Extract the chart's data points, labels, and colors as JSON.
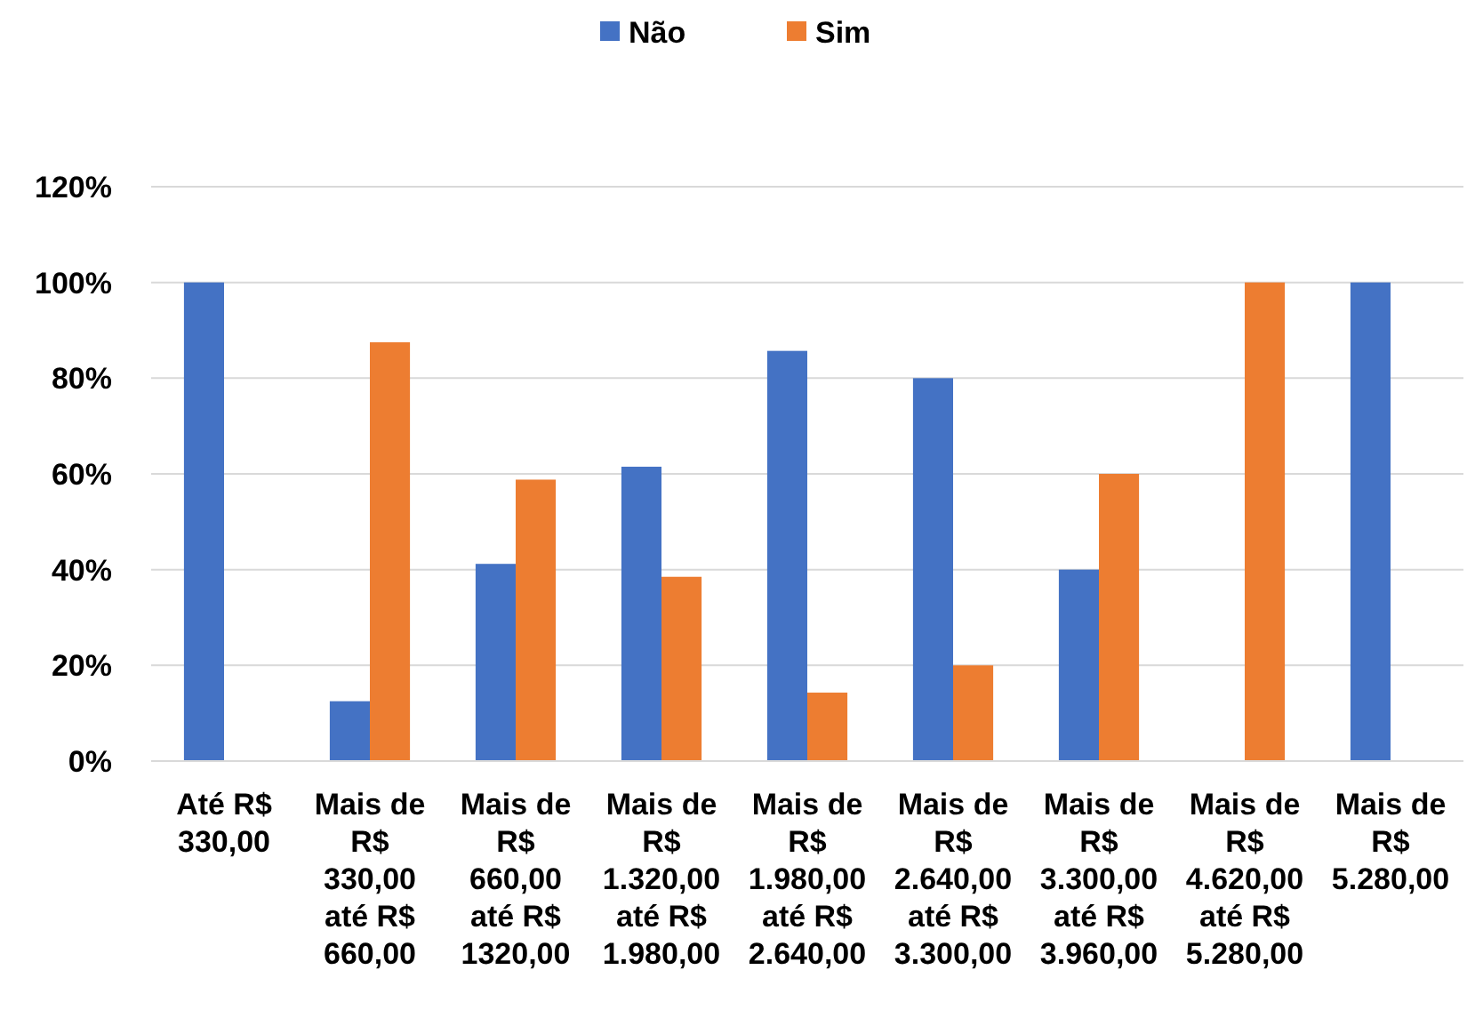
{
  "chart_data": {
    "type": "bar",
    "categories": [
      "Até R$ 330,00",
      "Mais de R$ 330,00 até R$ 660,00",
      "Mais de R$ 660,00 até R$ 1320,00",
      "Mais de R$ 1.320,00 até R$ 1.980,00",
      "Mais de R$ 1.980,00 até R$ 2.640,00",
      "Mais de R$ 2.640,00 até R$ 3.300,00",
      "Mais de R$ 3.300,00 até R$ 3.960,00",
      "Mais de R$ 4.620,00 até R$ 5.280,00",
      "Mais de R$ 5.280,00"
    ],
    "series": [
      {
        "name": "Não",
        "color": "#4472c4",
        "values": [
          100,
          12.5,
          41.2,
          61.5,
          85.7,
          80,
          40,
          0,
          100
        ]
      },
      {
        "name": "Sim",
        "color": "#ed7d31",
        "values": [
          0,
          87.5,
          58.8,
          38.5,
          14.3,
          20,
          60,
          100,
          0
        ]
      }
    ],
    "ylim": [
      0,
      120
    ],
    "yticks": [
      {
        "value": 0,
        "label": "0%"
      },
      {
        "value": 20,
        "label": "20%"
      },
      {
        "value": 40,
        "label": "40%"
      },
      {
        "value": 60,
        "label": "60%"
      },
      {
        "value": 80,
        "label": "80%"
      },
      {
        "value": 100,
        "label": "100%"
      },
      {
        "value": 120,
        "label": "120%"
      }
    ],
    "grid": "y",
    "legend": "top"
  }
}
